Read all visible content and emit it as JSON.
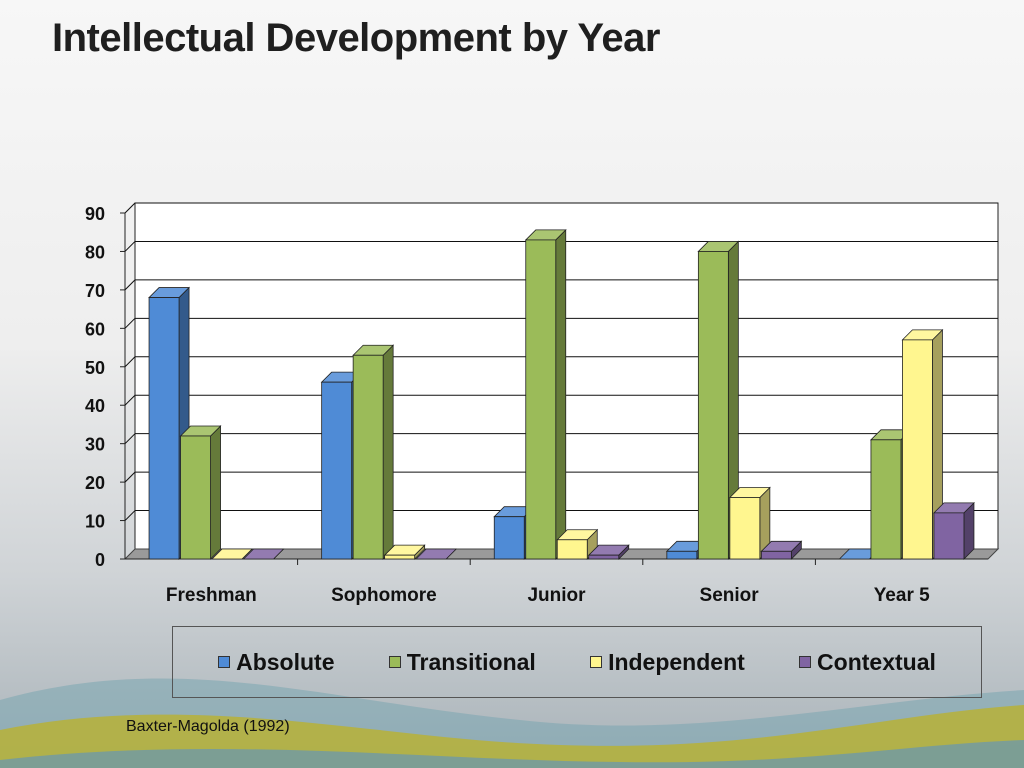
{
  "slide": {
    "title": "Intellectual Development by Year",
    "source": "Baxter-Magolda (1992)"
  },
  "colors": {
    "Absolute": "#4f8bd6",
    "Transitional": "#9bbb59",
    "Independent": "#fff68f",
    "Contextual": "#8064a2"
  },
  "chart_data": {
    "type": "bar",
    "title": "",
    "xlabel": "",
    "ylabel": "",
    "categories": [
      "Freshman",
      "Sophomore",
      "Junior",
      "Senior",
      "Year 5"
    ],
    "series": [
      {
        "name": "Absolute",
        "values": [
          68,
          46,
          11,
          2,
          0
        ]
      },
      {
        "name": "Transitional",
        "values": [
          32,
          53,
          83,
          80,
          31
        ]
      },
      {
        "name": "Independent",
        "values": [
          0,
          1,
          5,
          16,
          57
        ]
      },
      {
        "name": "Contextual",
        "values": [
          0,
          0,
          1,
          2,
          12
        ]
      }
    ],
    "ylim": [
      0,
      90
    ],
    "yticks": [
      0,
      10,
      20,
      30,
      40,
      50,
      60,
      70,
      80,
      90
    ],
    "grid": true,
    "legend_position": "bottom",
    "style": "3d-clustered"
  }
}
